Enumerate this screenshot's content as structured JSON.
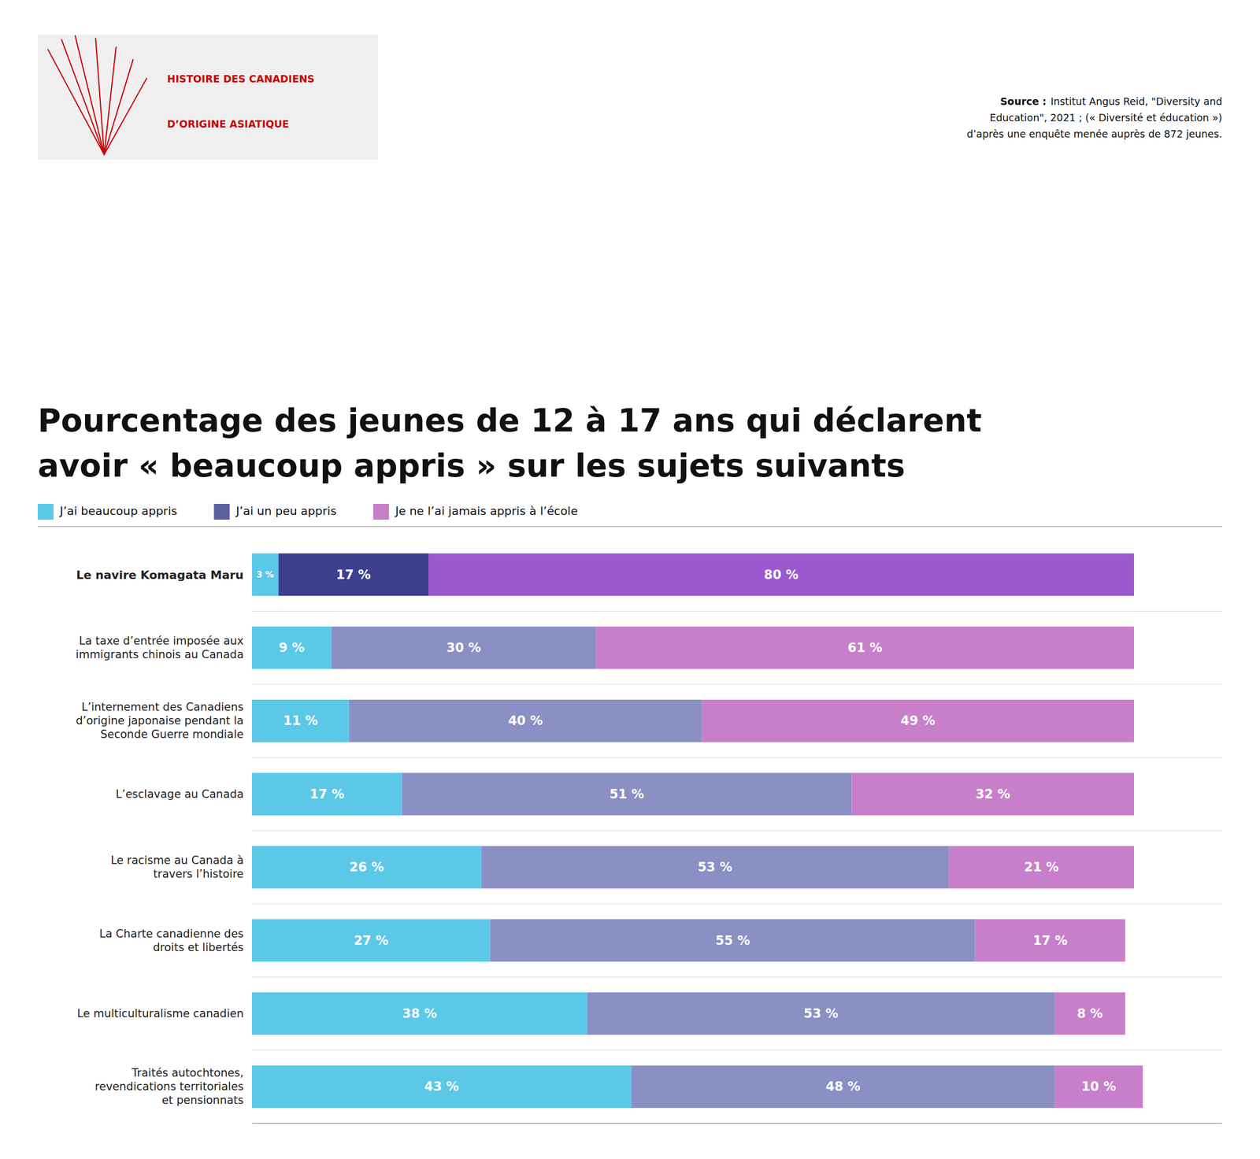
{
  "chart_data": {
    "type": "bar",
    "orientation": "horizontal",
    "stacked": true,
    "data_labels": true,
    "grid": false,
    "legend": "upper left",
    "tick_labels": "y",
    "title": "Pourcentage des jeunes de 12 à 17 ans qui déclarent\navoir « beaucoup appris » sur les sujets suivants",
    "annotations": [
      "Source :",
      "Institut Angus Reid, \"Diversity and\nEducation\", 2021 ; (« Diversité et éducation »)\nd’après une enquête menée auprès de 872 jeunes.",
      "HISTOIRE DES CANADIENS",
      "D’ORIGINE ASIATIQUE"
    ],
    "categories": [
      "Le navire Komagata Maru",
      "La taxe d’entrée imposée aux\nimmigrants chinois au Canada",
      "L’internement des Canadiens\nd’origine japonaise pendant la\nSeconde Guerre mondiale",
      "L’esclavage au Canada",
      "Le racisme au Canada à\ntravers l’histoire",
      "La Charte canadienne des\ndroits et libertés",
      "Le multiculturalisme canadien",
      "Traités autochtones,\nrevendications territoriales\net pensionnats"
    ],
    "series": [
      {
        "name": "J’ai beaucoup appris",
        "color": "#5bc8e8",
        "values": [
          3,
          9,
          11,
          17,
          26,
          27,
          38,
          43
        ],
        "value_labels": [
          "3 %",
          "9 %",
          "11 %",
          "17 %",
          "26 %",
          "27 %",
          "38 %",
          "43 %"
        ]
      },
      {
        "name": "J’ai un peu appris",
        "color": "#5a5f9e",
        "colors": [
          "#3d3f8f",
          "#8a8fc4",
          "#8a8fc4",
          "#8a8fc4",
          "#8a8fc4",
          "#8a8fc4",
          "#8a8fc4",
          "#8a8fc4"
        ],
        "values": [
          17,
          30,
          40,
          51,
          53,
          55,
          53,
          48
        ],
        "value_labels": [
          "17 %",
          "30 %",
          "40 %",
          "51 %",
          "53 %",
          "55 %",
          "53 %",
          "48 %"
        ]
      },
      {
        "name": "Je ne l’ai jamais appris à l’école",
        "color": "#c87fca",
        "colors": [
          "#9b59d0",
          "#c87fca",
          "#c87fca",
          "#c87fca",
          "#c87fca",
          "#c87fca",
          "#c87fca",
          "#c87fca"
        ],
        "values": [
          80,
          61,
          49,
          32,
          21,
          17,
          8,
          10
        ],
        "value_labels": [
          "80 %",
          "61 %",
          "49 %",
          "32 %",
          "21 %",
          "17 %",
          "8 %",
          "10 %"
        ]
      }
    ],
    "xlim": [
      0,
      110
    ]
  }
}
